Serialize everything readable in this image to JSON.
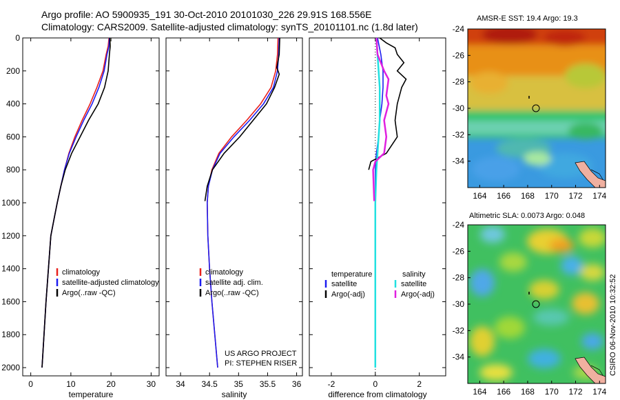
{
  "header": {
    "line1": "Argo profile: AO 5900935_191 30-Oct-2010 20101030_226 29.91S 168.556E",
    "line2": "Climatology: CARS2009. Satellite-adjusted climatology: synTS_20101101.nc (1.8d later)"
  },
  "colors": {
    "climatology": "#e8201c",
    "satellite": "#1c1cf0",
    "argo": "#000000",
    "cyan": "#22e0e0",
    "magenta": "#e020e0"
  },
  "chart_data": [
    {
      "type": "line",
      "panel": "temperature",
      "xlabel": "temperature",
      "ylabel": "",
      "xlim": [
        -2,
        32
      ],
      "ylim": [
        2050,
        0
      ],
      "xticks": [
        0,
        10,
        20,
        30
      ],
      "yticks": [
        0,
        200,
        400,
        600,
        800,
        1000,
        1200,
        1400,
        1600,
        1800,
        2000
      ],
      "legend": [
        "climatology",
        "satellite-adjusted climatology",
        "Argo(..raw -QC)"
      ],
      "series": [
        {
          "name": "climatology",
          "color": "#e8201c",
          "points": [
            [
              19.5,
              0
            ],
            [
              19.3,
              50
            ],
            [
              18.8,
              100
            ],
            [
              18.0,
              200
            ],
            [
              16.5,
              300
            ],
            [
              14.8,
              400
            ],
            [
              12.8,
              500
            ],
            [
              11.0,
              600
            ],
            [
              9.5,
              700
            ],
            [
              8.4,
              800
            ],
            [
              7.5,
              900
            ],
            [
              6.6,
              1000
            ],
            [
              5.8,
              1100
            ],
            [
              5.0,
              1200
            ],
            [
              4.4,
              1400
            ],
            [
              3.8,
              1600
            ],
            [
              3.3,
              1800
            ],
            [
              2.8,
              2000
            ]
          ]
        },
        {
          "name": "satellite-adjusted climatology",
          "color": "#1c1cf0",
          "points": [
            [
              19.6,
              0
            ],
            [
              19.5,
              50
            ],
            [
              19.0,
              100
            ],
            [
              18.3,
              200
            ],
            [
              17.0,
              300
            ],
            [
              15.3,
              400
            ],
            [
              13.2,
              500
            ],
            [
              11.3,
              600
            ],
            [
              9.6,
              700
            ],
            [
              8.4,
              800
            ],
            [
              7.5,
              900
            ],
            [
              6.6,
              1000
            ],
            [
              5.8,
              1100
            ],
            [
              5.0,
              1200
            ],
            [
              4.4,
              1400
            ],
            [
              3.8,
              1600
            ],
            [
              3.3,
              1800
            ],
            [
              2.8,
              2000
            ]
          ]
        },
        {
          "name": "Argo(..raw -QC)",
          "color": "#000000",
          "points": [
            [
              19.7,
              0
            ],
            [
              19.8,
              50
            ],
            [
              19.6,
              100
            ],
            [
              19.3,
              200
            ],
            [
              18.4,
              300
            ],
            [
              16.8,
              400
            ],
            [
              14.4,
              500
            ],
            [
              12.3,
              600
            ],
            [
              10.2,
              700
            ],
            [
              8.6,
              800
            ],
            [
              7.5,
              900
            ],
            [
              6.6,
              1000
            ],
            [
              5.8,
              1100
            ],
            [
              5.0,
              1200
            ],
            [
              4.4,
              1400
            ],
            [
              3.8,
              1600
            ],
            [
              3.3,
              1800
            ],
            [
              2.8,
              2000
            ]
          ]
        }
      ]
    },
    {
      "type": "line",
      "panel": "salinity",
      "xlabel": "salinity",
      "ylabel": "",
      "xlim": [
        33.75,
        36.1
      ],
      "ylim": [
        2050,
        0
      ],
      "xticks": [
        34,
        34.5,
        35,
        35.5,
        36
      ],
      "legend": [
        "climatology",
        "satellite adj. clim.",
        "Argo(..raw -QC)"
      ],
      "annotation": [
        "US ARGO PROJECT",
        "PI: STEPHEN RISER"
      ],
      "series": [
        {
          "name": "climatology",
          "color": "#e8201c",
          "points": [
            [
              35.68,
              0
            ],
            [
              35.67,
              100
            ],
            [
              35.64,
              200
            ],
            [
              35.56,
              300
            ],
            [
              35.38,
              400
            ],
            [
              35.14,
              500
            ],
            [
              34.88,
              600
            ],
            [
              34.66,
              700
            ],
            [
              34.54,
              800
            ],
            [
              34.48,
              900
            ],
            [
              34.46,
              1000
            ],
            [
              34.47,
              1200
            ],
            [
              34.5,
              1400
            ],
            [
              34.54,
              1600
            ],
            [
              34.59,
              1800
            ],
            [
              34.64,
              2000
            ]
          ]
        },
        {
          "name": "satellite adj. clim.",
          "color": "#1c1cf0",
          "points": [
            [
              35.7,
              0
            ],
            [
              35.69,
              100
            ],
            [
              35.67,
              200
            ],
            [
              35.6,
              300
            ],
            [
              35.43,
              400
            ],
            [
              35.19,
              500
            ],
            [
              34.92,
              600
            ],
            [
              34.68,
              700
            ],
            [
              34.55,
              800
            ],
            [
              34.48,
              900
            ],
            [
              34.46,
              1000
            ],
            [
              34.47,
              1200
            ],
            [
              34.5,
              1400
            ],
            [
              34.54,
              1600
            ],
            [
              34.59,
              1800
            ],
            [
              34.64,
              2000
            ]
          ]
        },
        {
          "name": "Argo(..raw -QC)",
          "color": "#000000",
          "points": [
            [
              35.71,
              0
            ],
            [
              35.7,
              100
            ],
            [
              35.66,
              180
            ],
            [
              35.7,
              220
            ],
            [
              35.62,
              300
            ],
            [
              35.48,
              400
            ],
            [
              35.25,
              500
            ],
            [
              35.02,
              600
            ],
            [
              34.75,
              700
            ],
            [
              34.55,
              800
            ],
            [
              34.46,
              900
            ],
            [
              34.42,
              990
            ]
          ]
        }
      ]
    },
    {
      "type": "line",
      "panel": "difference",
      "xlabel": "difference from climatology",
      "ylabel": "",
      "xlim": [
        -3.0,
        3.2
      ],
      "ylim": [
        2050,
        0
      ],
      "xticks": [
        -2,
        0,
        2
      ],
      "legend_left_title": "temperature",
      "legend_right_title": "salinity",
      "legend_left": [
        "satellite",
        "Argo(-adj)"
      ],
      "legend_right": [
        "satellite",
        "Argo(-adj)"
      ],
      "series": [
        {
          "name": "satellite",
          "group": "temperature",
          "color": "#1c1cf0",
          "points": [
            [
              0.1,
              0
            ],
            [
              0.25,
              100
            ],
            [
              0.35,
              200
            ],
            [
              0.35,
              300
            ],
            [
              0.3,
              400
            ],
            [
              0.2,
              500
            ],
            [
              0.15,
              600
            ],
            [
              0.05,
              700
            ],
            [
              0.0,
              800
            ],
            [
              0.0,
              1000
            ],
            [
              0.0,
              2000
            ]
          ]
        },
        {
          "name": "Argo(-adj)",
          "group": "temperature",
          "color": "#000000",
          "points": [
            [
              0.2,
              0
            ],
            [
              0.5,
              30
            ],
            [
              0.9,
              60
            ],
            [
              1.0,
              100
            ],
            [
              1.3,
              150
            ],
            [
              1.0,
              200
            ],
            [
              1.4,
              250
            ],
            [
              1.2,
              300
            ],
            [
              1.0,
              400
            ],
            [
              0.9,
              500
            ],
            [
              1.0,
              600
            ],
            [
              0.5,
              700
            ],
            [
              -0.2,
              750
            ],
            [
              -0.3,
              800
            ]
          ]
        },
        {
          "name": "satellite",
          "group": "salinity",
          "color": "#22e0e0",
          "points": [
            [
              0.05,
              0
            ],
            [
              0.1,
              100
            ],
            [
              0.15,
              200
            ],
            [
              0.2,
              300
            ],
            [
              0.2,
              400
            ],
            [
              0.2,
              500
            ],
            [
              0.15,
              600
            ],
            [
              0.1,
              700
            ],
            [
              0.05,
              800
            ],
            [
              0.0,
              1000
            ],
            [
              0.0,
              1500
            ],
            [
              0.0,
              2000
            ]
          ]
        },
        {
          "name": "Argo(-adj)",
          "group": "salinity",
          "color": "#e020e0",
          "points": [
            [
              0.05,
              0
            ],
            [
              0.1,
              100
            ],
            [
              0.4,
              200
            ],
            [
              0.6,
              250
            ],
            [
              0.5,
              350
            ],
            [
              0.6,
              400
            ],
            [
              0.4,
              500
            ],
            [
              0.5,
              600
            ],
            [
              0.4,
              700
            ],
            [
              0.0,
              750
            ],
            [
              -0.1,
              800
            ],
            [
              -0.05,
              990
            ]
          ]
        }
      ]
    },
    {
      "type": "heatmap",
      "panel": "sst-map",
      "title": "AMSR-E SST: 19.4  Argo: 19.3",
      "xlim": [
        163,
        174.5
      ],
      "ylim": [
        -36,
        -24
      ],
      "xticks": [
        164,
        166,
        168,
        170,
        172,
        174
      ],
      "yticks": [
        -24,
        -26,
        -28,
        -30,
        -32,
        -34
      ],
      "marker": [
        168.556,
        -29.91
      ]
    },
    {
      "type": "heatmap",
      "panel": "sla-map",
      "title": "Altimetric SLA: 0.0073  Argo: 0.048",
      "xlim": [
        163,
        174.5
      ],
      "ylim": [
        -36,
        -24
      ],
      "xticks": [
        164,
        166,
        168,
        170,
        172,
        174
      ],
      "yticks": [
        -24,
        -26,
        -28,
        -30,
        -32,
        -34
      ],
      "marker": [
        168.556,
        -29.91
      ]
    }
  ],
  "footer_stamp": "CSIRO 06-Nov-2010 10:32:52"
}
